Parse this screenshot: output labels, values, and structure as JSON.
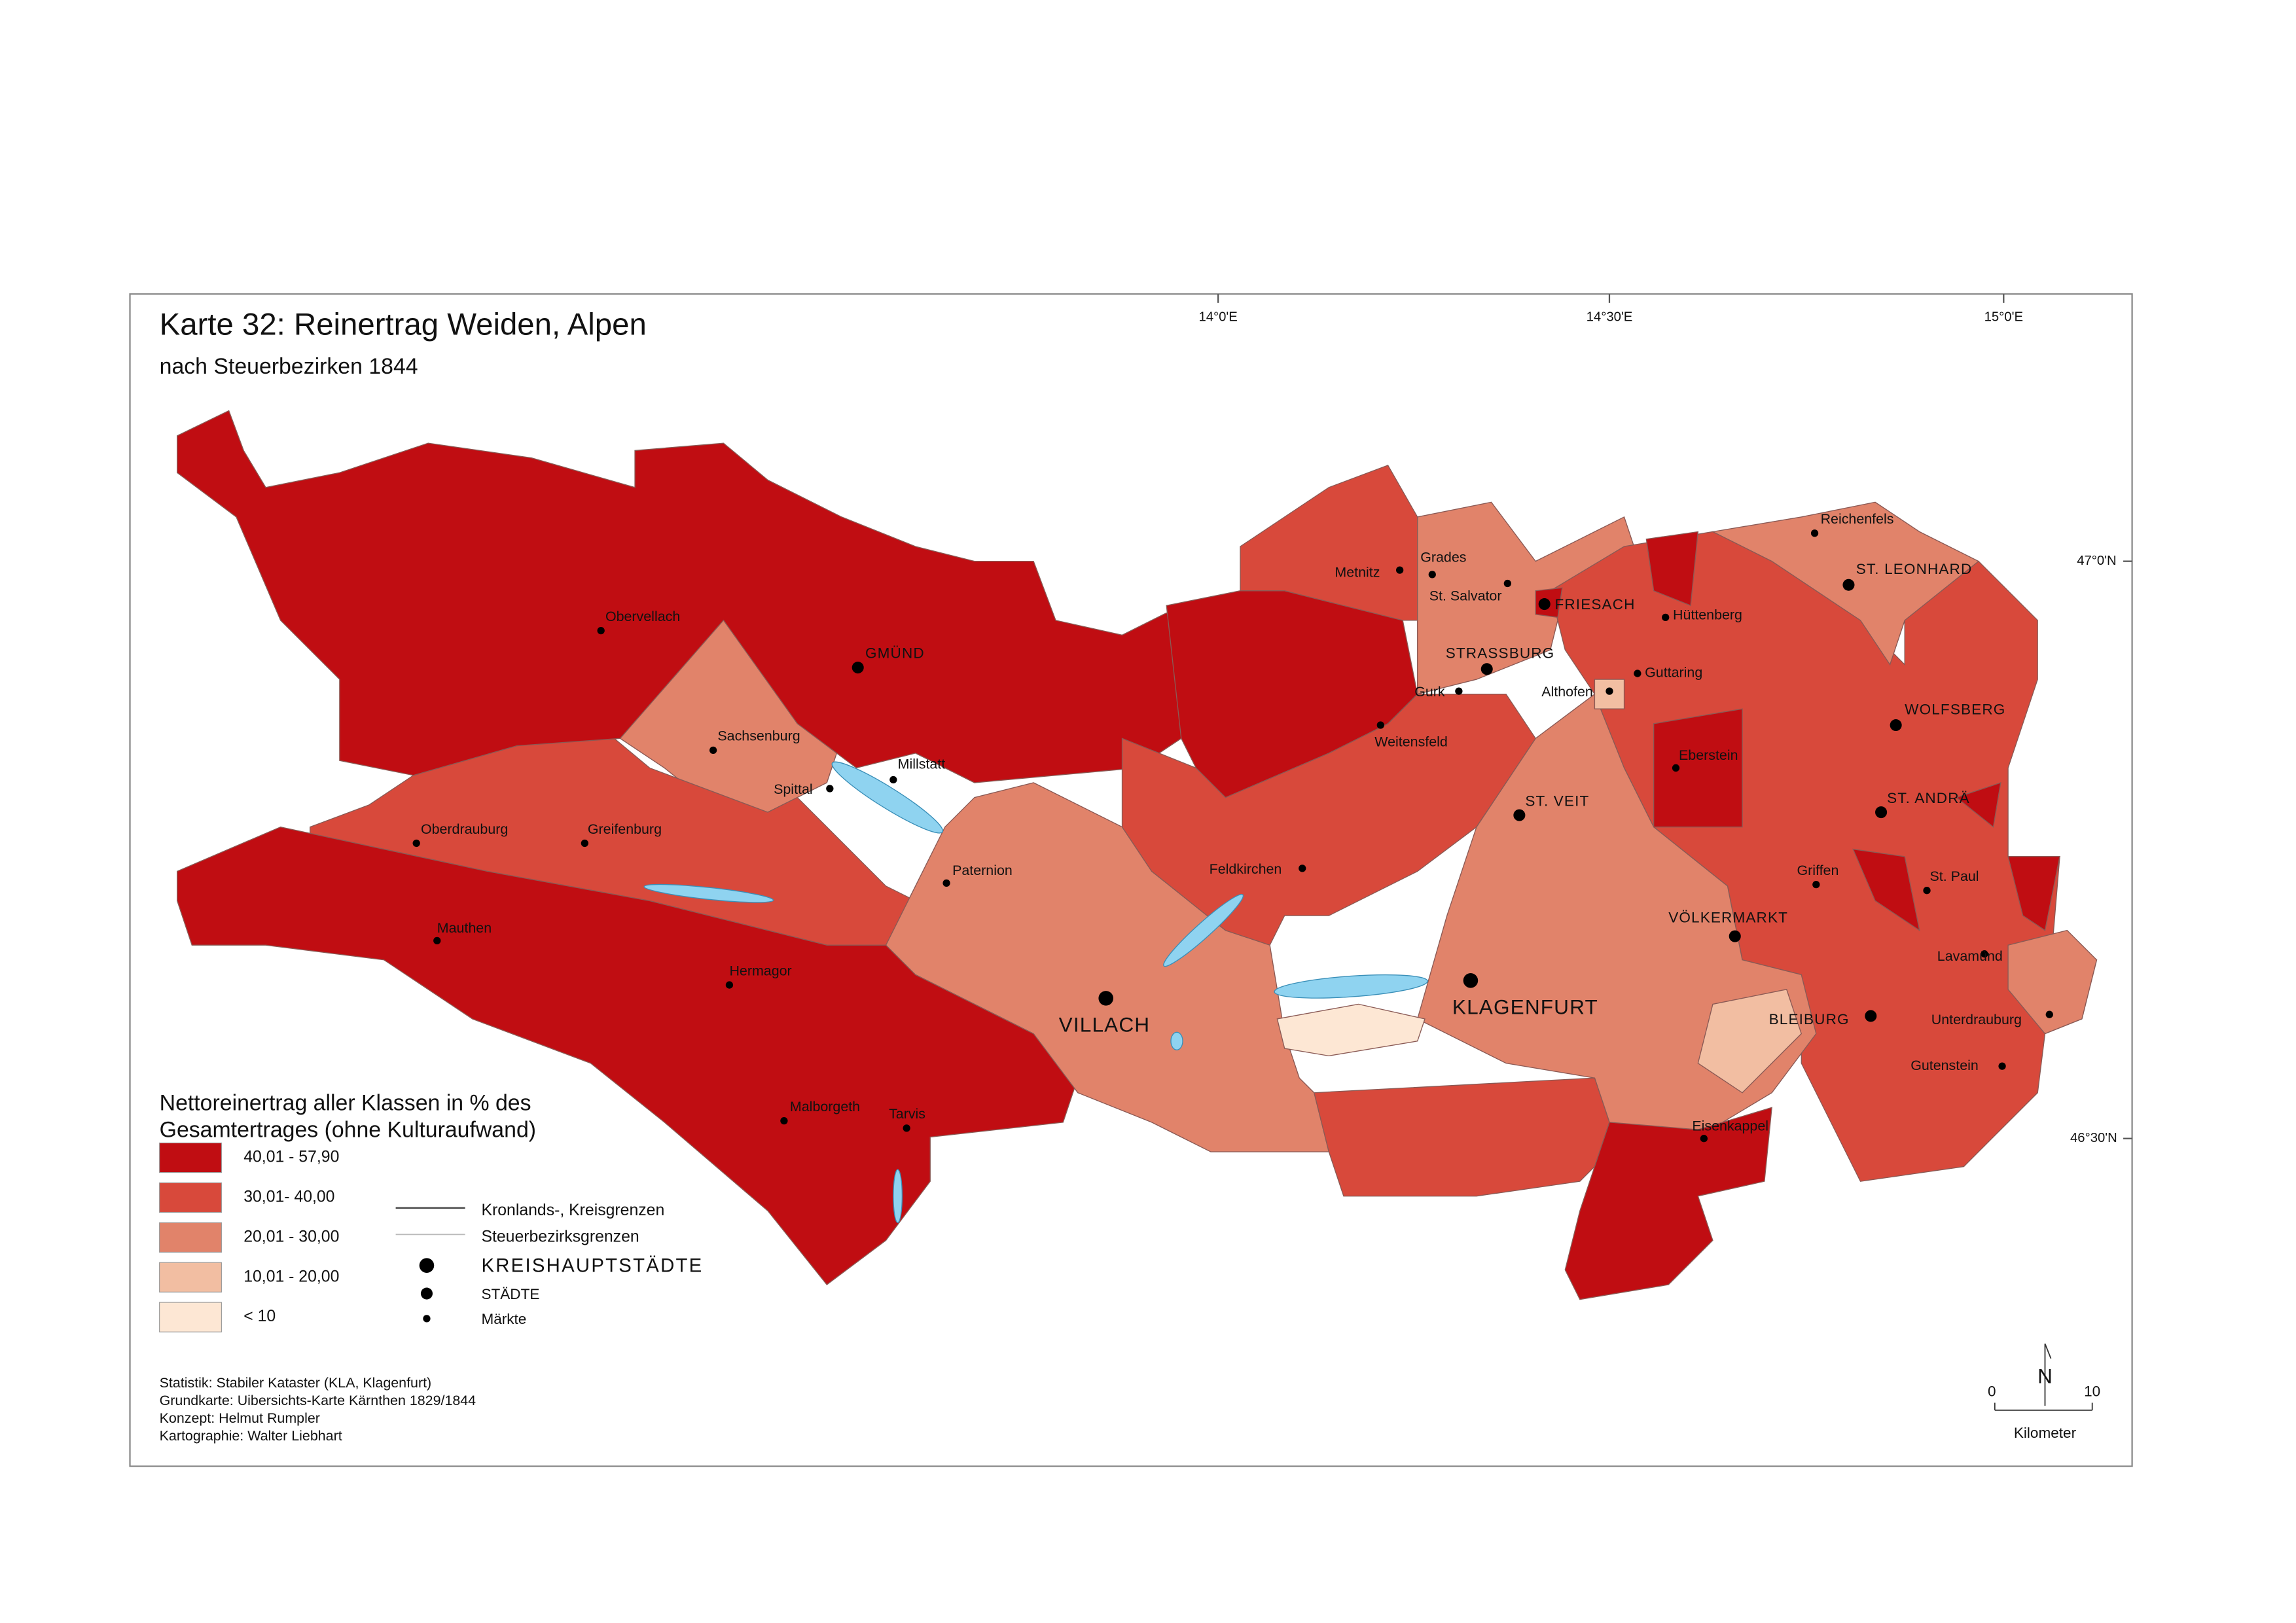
{
  "header": {
    "title": "Karte 32: Reinertrag Weiden, Alpen",
    "subtitle": "nach Steuerbezirken 1844"
  },
  "graticule": {
    "longitudes": [
      "14°0'E",
      "14°30'E",
      "15°0'E"
    ],
    "latitudes": [
      "47°0'N",
      "46°30'N"
    ]
  },
  "legend": {
    "title_lines": [
      "Nettoreinertrag aller Klassen in % des",
      "Gesamtertrages (ohne Kulturaufwand)"
    ],
    "classes": [
      {
        "label": "40,01 - 57,90",
        "color": "#c00d12"
      },
      {
        "label": "30,01- 40,00",
        "color": "#d8493b"
      },
      {
        "label": "20,01 - 30,00",
        "color": "#e1836a"
      },
      {
        "label": "10,01 - 20,00",
        "color": "#f2bea2"
      },
      {
        "label": "< 10",
        "color": "#fde7d4"
      }
    ],
    "lines": [
      "Kronlands-, Kreisgrenzen",
      "Steuerbezirksgrenzen"
    ],
    "points": [
      "KREISHAUPTSTÄDTE",
      "STÄDTE",
      "Märkte"
    ]
  },
  "places": {
    "kreishauptstaedte": [
      "VILLACH",
      "KLAGENFURT"
    ],
    "staedte": [
      "GMÜND",
      "FRIESACH",
      "STRASSBURG",
      "ST. VEIT",
      "ST. LEONHARD",
      "WOLFSBERG",
      "ST. ANDRÄ",
      "VÖLKERMARKT",
      "BLEIBURG"
    ],
    "maerkte": [
      "Obervellach",
      "Sachsenburg",
      "Millstatt",
      "Spittal",
      "Oberdrauburg",
      "Greifenburg",
      "Paternion",
      "Mauthen",
      "Hermagor",
      "Malborgeth",
      "Tarvis",
      "Feldkirchen",
      "Metnitz",
      "Grades",
      "St. Salvator",
      "Hüttenberg",
      "Gurk",
      "Weitensfeld",
      "Althofen",
      "Guttaring",
      "Eberstein",
      "Griffen",
      "St. Paul",
      "Lavamünd",
      "Unterdrauburg",
      "Gutenstein",
      "Eisenkappel",
      "Reichenfels"
    ]
  },
  "credits": [
    "Statistik: Stabiler Kataster (KLA, Klagenfurt)",
    "Grundkarte: Uibersichts-Karte Kärnthen 1829/1844",
    "Konzept: Helmut Rumpler",
    "Kartographie: Walter Liebhart"
  ],
  "scale": {
    "start": "0",
    "end": "10",
    "unit": "Kilometer",
    "north": "N"
  }
}
